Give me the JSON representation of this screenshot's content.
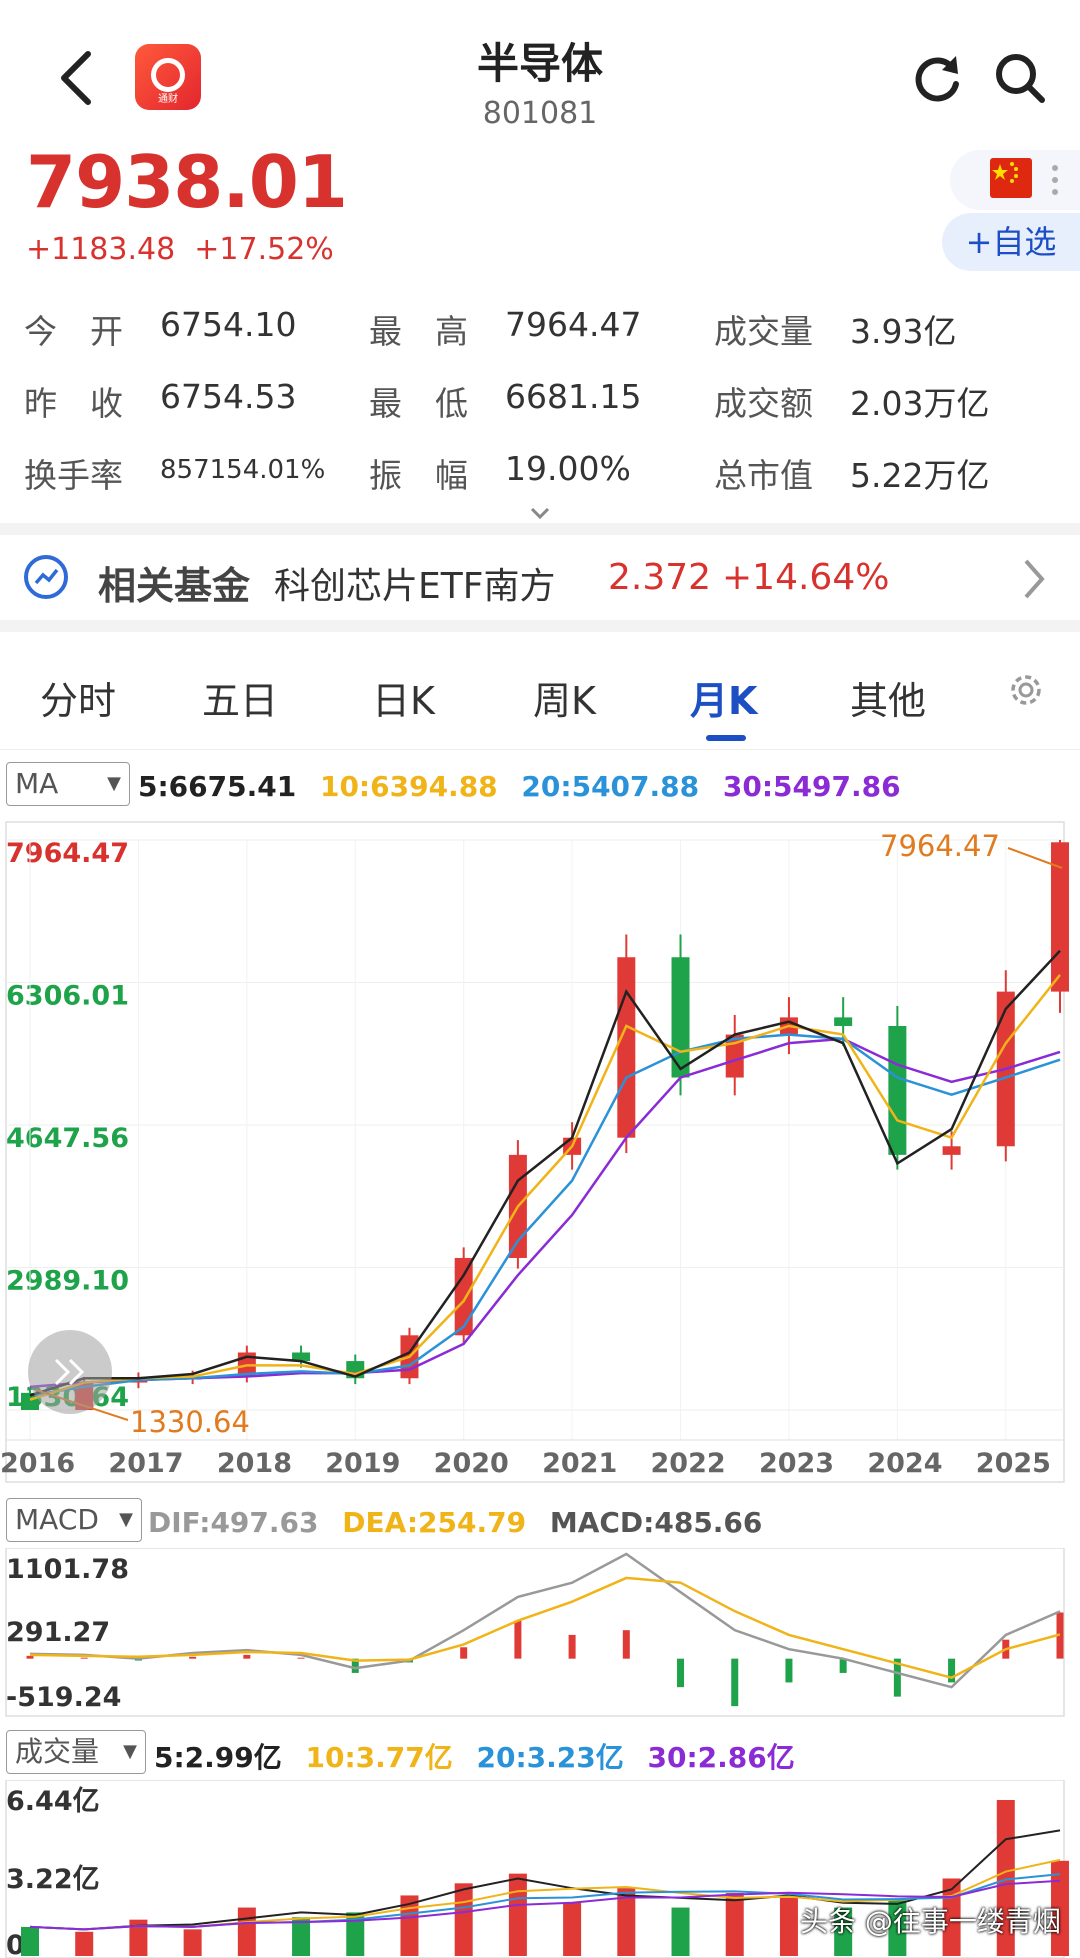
{
  "header": {
    "title": "半导体",
    "code": "801081",
    "logo_text": "通财",
    "icons": [
      "back-arrow-icon",
      "app-logo-icon",
      "refresh-icon",
      "search-icon"
    ]
  },
  "quote": {
    "price": "7938.01",
    "change": "+1183.48",
    "change_pct": "+17.52%",
    "add_watchlist": "+自选"
  },
  "stats": {
    "open_label": "今　开",
    "open": "6754.10",
    "high_label": "最　高",
    "high": "7964.47",
    "volume_label": "成交量",
    "volume": "3.93亿",
    "prev_close_label": "昨　收",
    "prev_close": "6754.53",
    "low_label": "最　低",
    "low": "6681.15",
    "amount_label": "成交额",
    "amount": "2.03万亿",
    "turnover_label": "换手率",
    "turnover": "857154.01%",
    "amplitude_label": "振　幅",
    "amplitude": "19.00%",
    "mktcap_label": "总市值",
    "mktcap": "5.22万亿"
  },
  "fund": {
    "label": "相关基金",
    "name": "科创芯片ETF南方",
    "price": "2.372",
    "change_pct": "+14.64%"
  },
  "tabs": [
    "分时",
    "五日",
    "日K",
    "周K",
    "月K",
    "其他"
  ],
  "active_tab": 4,
  "colors": {
    "up": "#e03a36",
    "down": "#1fa34a",
    "ma5": "#222222",
    "ma10": "#f0b418",
    "ma20": "#2a92d8",
    "ma30": "#8a2bd6",
    "accent": "#1d4fc4"
  },
  "chart_data": [
    {
      "type": "candlestick",
      "selector": "MA",
      "ma_legend": {
        "ma5": "5:6675.41",
        "ma10": "10:6394.88",
        "ma20": "20:5407.88",
        "ma30": "30:5497.86"
      },
      "y_ticks": [
        "7964.47",
        "6306.01",
        "4647.56",
        "2989.10",
        "1330.64"
      ],
      "ylim": [
        1330.64,
        7964.47
      ],
      "max_marker": "7964.47",
      "min_marker": "1330.64",
      "x_labels": [
        "2016",
        "2017",
        "2018",
        "2019",
        "2020",
        "2021",
        "2022",
        "2023",
        "2024",
        "2025"
      ],
      "x": [
        "2016",
        "2016.5",
        "2017",
        "2017.5",
        "2018",
        "2018.5",
        "2019",
        "2019.5",
        "2020",
        "2020.5",
        "2021",
        "2021.5",
        "2022",
        "2022.5",
        "2023",
        "2023.5",
        "2024",
        "2024.5",
        "2025",
        "2025.5"
      ],
      "close": [
        1330.64,
        1650,
        1700,
        1720,
        2000,
        1900,
        1700,
        2200,
        3100,
        4300,
        4500,
        6600,
        5200,
        5700,
        5900,
        5800,
        4300,
        4400,
        6200,
        7938.01
      ],
      "ma5": [
        1500,
        1700,
        1700,
        1750,
        1950,
        1900,
        1720,
        2000,
        2900,
        4000,
        4500,
        6200,
        5300,
        5700,
        5850,
        5600,
        4200,
        4600,
        6000,
        6675.41
      ],
      "ma10": [
        1450,
        1650,
        1700,
        1720,
        1850,
        1850,
        1750,
        1950,
        2600,
        3700,
        4400,
        5800,
        5500,
        5600,
        5800,
        5700,
        4700,
        4500,
        5600,
        6394.88
      ],
      "ma20": [
        1500,
        1600,
        1680,
        1700,
        1750,
        1780,
        1750,
        1850,
        2300,
        3300,
        4000,
        5200,
        5500,
        5650,
        5700,
        5650,
        5200,
        5000,
        5200,
        5407.88
      ],
      "ma30": [
        1600,
        1650,
        1680,
        1700,
        1720,
        1760,
        1760,
        1800,
        2100,
        2900,
        3600,
        4500,
        5200,
        5400,
        5600,
        5650,
        5350,
        5150,
        5300,
        5497.86
      ]
    },
    {
      "type": "bar",
      "selector": "MACD",
      "legend": {
        "dif": "DIF:497.63",
        "dea": "DEA:254.79",
        "macd": "MACD:485.66"
      },
      "y_ticks": [
        "1101.78",
        "291.27",
        "-519.24"
      ],
      "ylim": [
        -519.24,
        1101.78
      ],
      "macd": [
        30,
        10,
        -20,
        20,
        40,
        10,
        -150,
        -40,
        120,
        400,
        250,
        300,
        -300,
        -500,
        -250,
        -150,
        -400,
        -250,
        200,
        485.66
      ],
      "dif": [
        50,
        40,
        0,
        60,
        90,
        40,
        -100,
        -20,
        300,
        650,
        800,
        1101.78,
        700,
        300,
        100,
        0,
        -150,
        -300,
        250,
        497.63
      ],
      "dea": [
        40,
        30,
        20,
        40,
        70,
        60,
        -20,
        -10,
        150,
        400,
        600,
        850,
        800,
        500,
        250,
        100,
        -50,
        -200,
        100,
        254.79
      ]
    },
    {
      "type": "bar",
      "selector": "成交量",
      "legend": {
        "ma5": "5:2.99亿",
        "ma10": "10:3.77亿",
        "ma20": "20:3.23亿",
        "ma30": "30:2.86亿"
      },
      "y_ticks": [
        "6.44亿",
        "3.22亿",
        "0"
      ],
      "ylim": [
        0,
        6.44
      ],
      "volume": [
        1.2,
        1.0,
        1.5,
        1.1,
        2.0,
        1.6,
        1.8,
        2.5,
        3.0,
        3.4,
        2.2,
        2.8,
        2.0,
        2.6,
        2.4,
        2.0,
        2.3,
        3.2,
        6.44,
        3.93
      ]
    }
  ],
  "watermark": "头条 @往事一缕青烟"
}
